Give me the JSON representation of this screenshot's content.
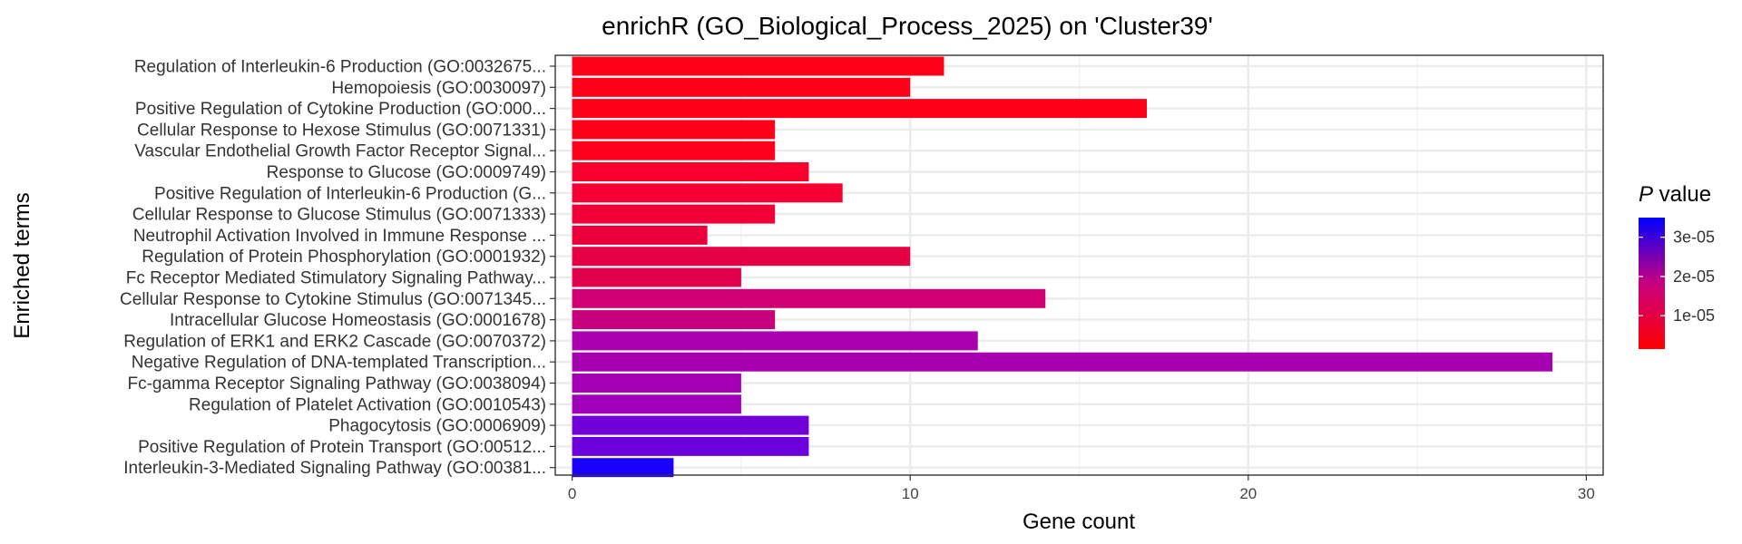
{
  "chart_data": {
    "type": "bar",
    "orientation": "horizontal",
    "title": "enrichR (GO_Biological_Process_2025) on 'Cluster39'",
    "xlabel": "Gene count",
    "ylabel": "Enriched terms",
    "xlim": [
      -0.5,
      30.5
    ],
    "xticks": [
      0,
      10,
      20,
      30
    ],
    "grid": true,
    "legend": {
      "title_italic": "P",
      "title_rest": " value",
      "placement": "right",
      "ticks": [
        "3e-05",
        "2e-05",
        "1e-05"
      ],
      "tick_values": [
        3e-05,
        2e-05,
        1e-05
      ],
      "range": [
        1.5e-06,
        3.5e-05
      ],
      "color_low": "#FF0000",
      "color_high": "#0000FF"
    },
    "categories": [
      "Regulation of Interleukin-6 Production (GO:0032675...",
      "Hemopoiesis (GO:0030097)",
      "Positive Regulation of Cytokine Production (GO:000...",
      "Cellular Response to Hexose Stimulus (GO:0071331)",
      "Vascular Endothelial Growth Factor Receptor Signal...",
      "Response to Glucose (GO:0009749)",
      "Positive Regulation of Interleukin-6 Production (G...",
      "Cellular Response to Glucose Stimulus (GO:0071333)",
      "Neutrophil Activation Involved in Immune Response ...",
      "Regulation of Protein Phosphorylation (GO:0001932)",
      "Fc Receptor Mediated Stimulatory Signaling Pathway...",
      "Cellular Response to Cytokine Stimulus (GO:0071345...",
      "Intracellular Glucose Homeostasis (GO:0001678)",
      "Regulation of ERK1 and ERK2 Cascade (GO:0070372)",
      "Negative Regulation of DNA-templated Transcription...",
      "Fc-gamma Receptor Signaling Pathway (GO:0038094)",
      "Regulation of Platelet Activation (GO:0010543)",
      "Phagocytosis (GO:0006909)",
      "Positive Regulation of Protein Transport (GO:00512...",
      "Interleukin-3-Mediated Signaling Pathway (GO:00381..."
    ],
    "values": [
      11,
      10,
      17,
      6,
      6,
      7,
      8,
      6,
      4,
      10,
      5,
      14,
      6,
      12,
      29,
      5,
      5,
      7,
      7,
      3
    ],
    "colors": [
      "#FF0019",
      "#FF0018",
      "#FF0019",
      "#FF001A",
      "#FF001C",
      "#F9002E",
      "#F50032",
      "#F00037",
      "#EC003C",
      "#E50045",
      "#E0004B",
      "#CE0073",
      "#C7007C",
      "#AB00AD",
      "#A700B0",
      "#A300B6",
      "#A000BA",
      "#7100D8",
      "#6B00DC",
      "#1A00FF"
    ]
  }
}
